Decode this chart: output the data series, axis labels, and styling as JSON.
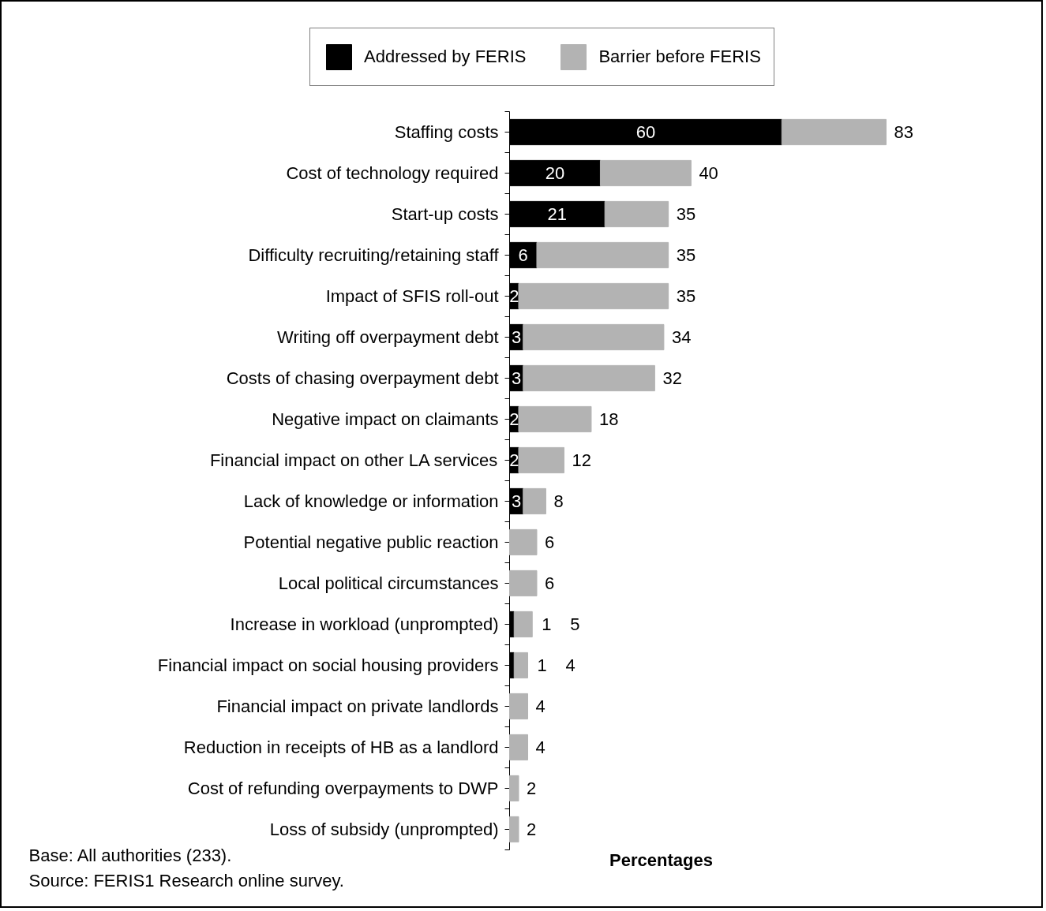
{
  "chart_data": {
    "type": "bar",
    "orientation": "horizontal",
    "stacked": true,
    "xlabel": "Percentages",
    "categories": [
      "Staffing costs",
      "Cost of technology required",
      "Start-up costs",
      "Difficulty recruiting/retaining staff",
      "Impact of SFIS roll-out",
      "Writing off overpayment debt",
      "Costs of chasing overpayment debt",
      "Negative impact on claimants",
      "Financial impact on other LA services",
      "Lack of knowledge or information",
      "Potential negative public reaction",
      "Local political circumstances",
      "Increase in workload (unprompted)",
      "Financial impact on social housing providers",
      "Financial impact on private landlords",
      "Reduction in receipts of HB as a landlord",
      "Cost of refunding overpayments to DWP",
      "Loss of subsidy (unprompted)"
    ],
    "series": [
      {
        "name": "Addressed by FERIS",
        "color": "#000000",
        "values": [
          60,
          20,
          21,
          6,
          2,
          3,
          3,
          2,
          2,
          3,
          null,
          null,
          1,
          1,
          null,
          null,
          null,
          null
        ],
        "value_labels": [
          "60",
          "20",
          "21",
          "6",
          "2",
          "3",
          "3",
          "2",
          "2",
          "3",
          null,
          null,
          "1",
          "1",
          null,
          null,
          null,
          null
        ]
      },
      {
        "name": "Barrier before FERIS",
        "color": "#b3b3b3",
        "values": [
          23,
          20,
          14,
          29,
          33,
          31,
          29,
          16,
          10,
          5,
          6,
          6,
          4,
          3,
          4,
          4,
          2,
          2
        ]
      }
    ],
    "totals": [
      "83",
      "40",
      "35",
      "35",
      "35",
      "34",
      "32",
      "18",
      "12",
      "8",
      "6",
      "6",
      "5",
      "4",
      "4",
      "4",
      "2",
      "2"
    ],
    "legend": "top",
    "annotations": [
      "Base: All authorities (233).",
      "Source: FERIS1 Research online survey."
    ]
  }
}
